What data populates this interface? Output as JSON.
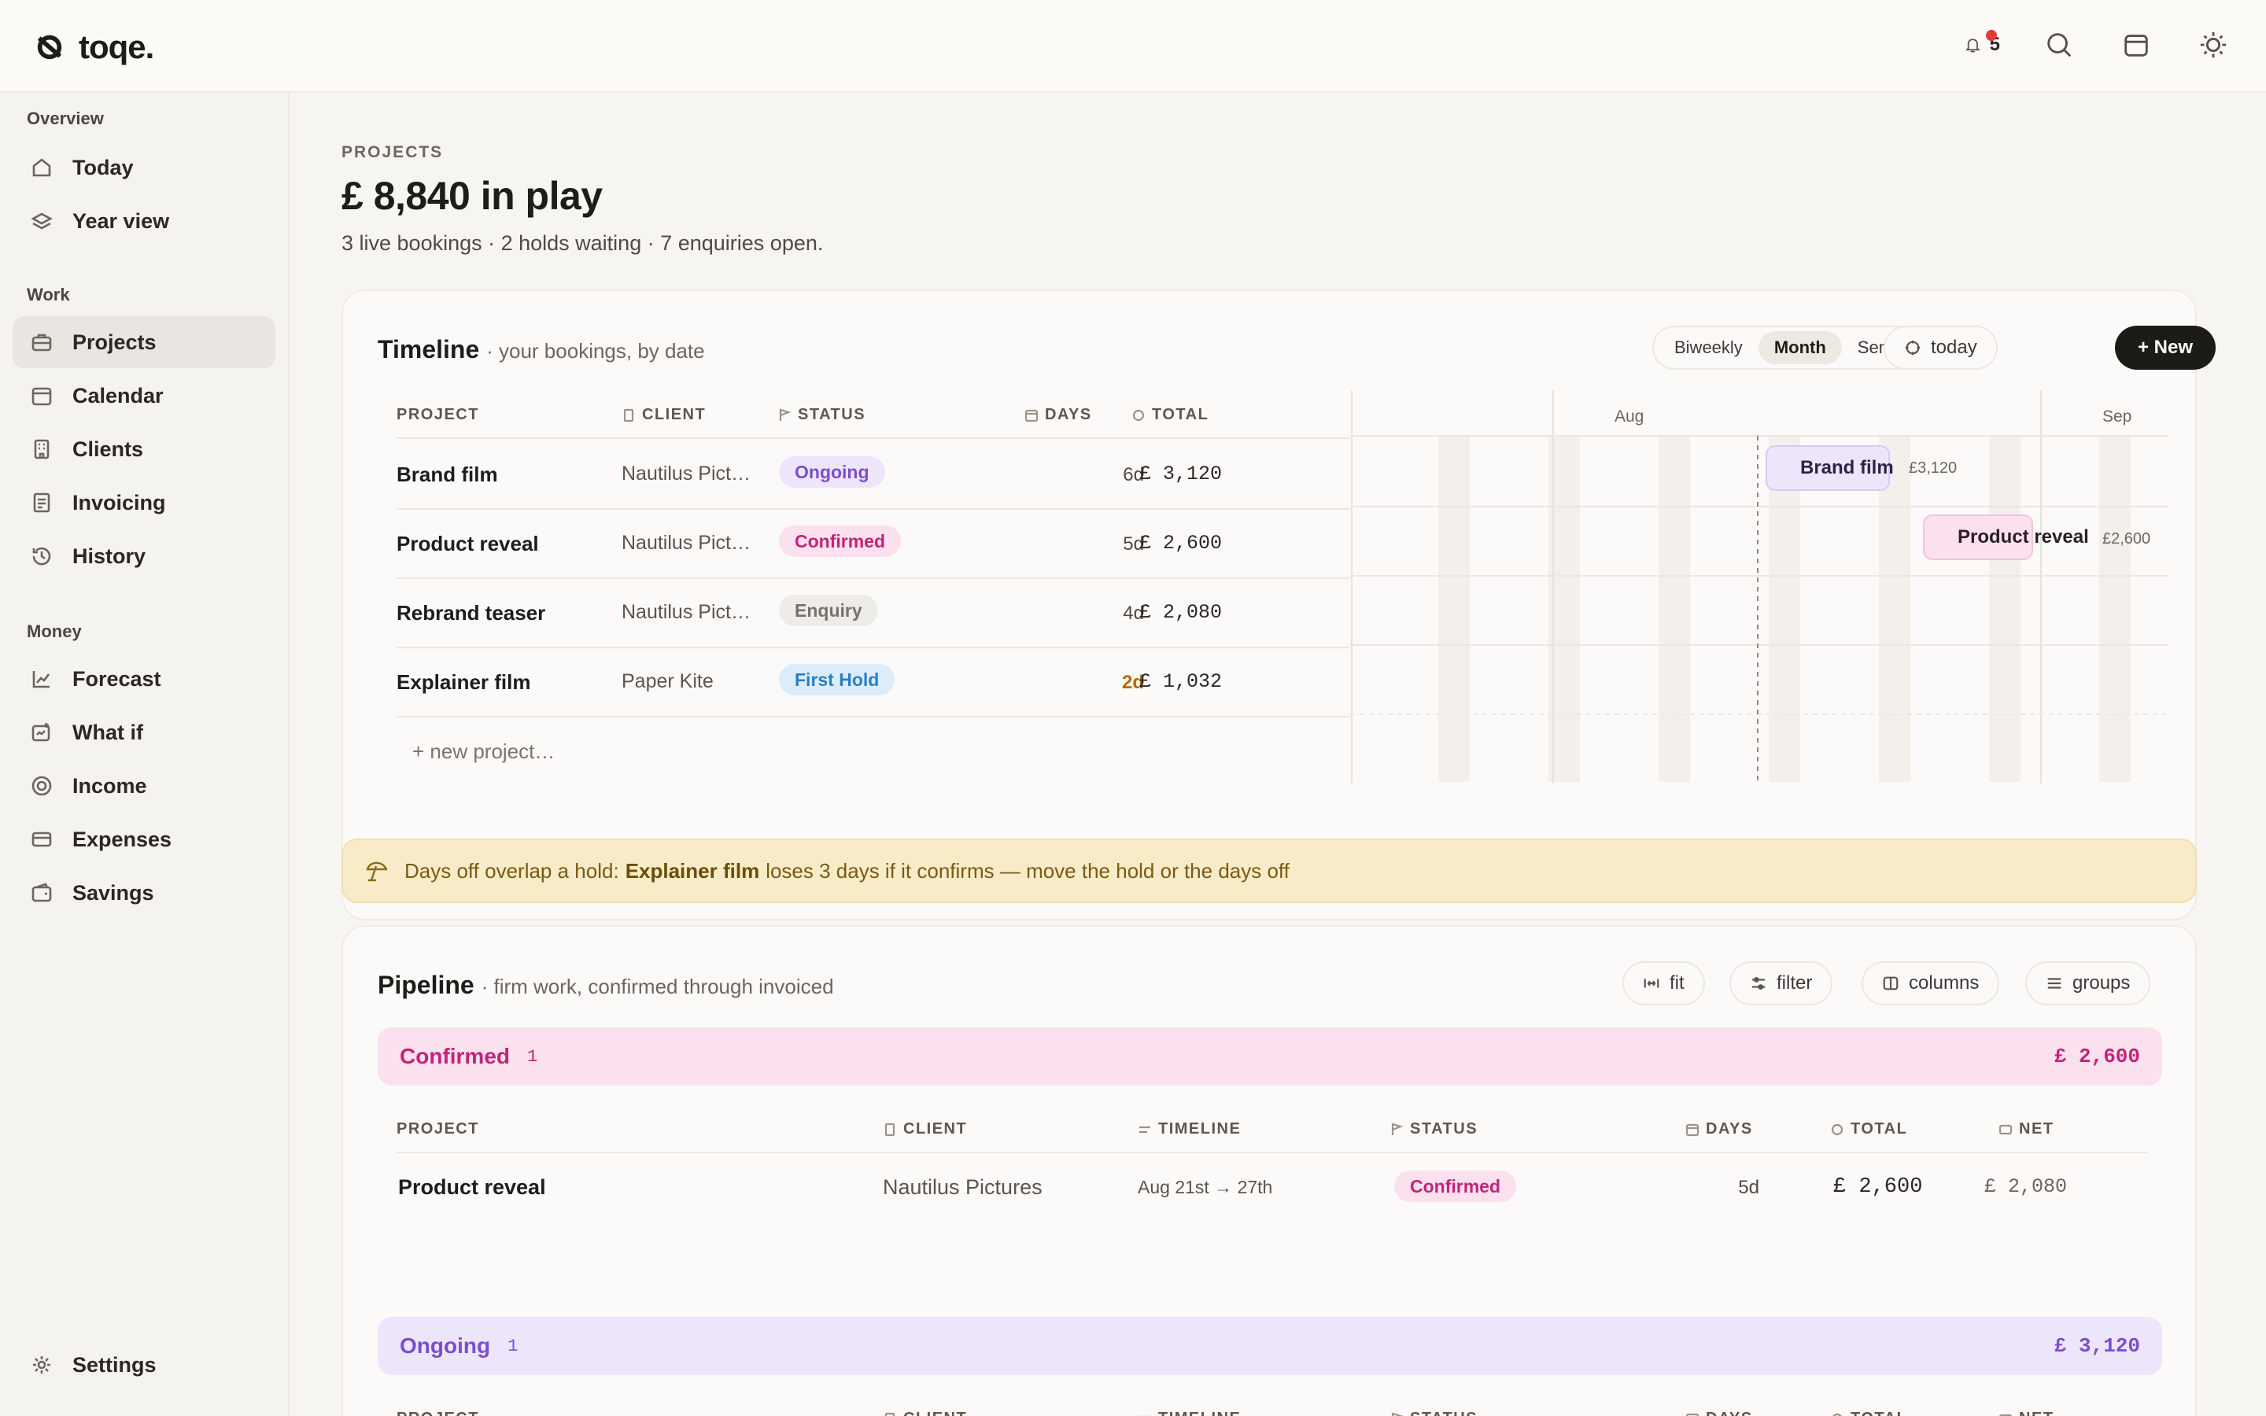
{
  "app": {
    "name": "toqe."
  },
  "topbar": {
    "notification_count": "5",
    "icons": [
      "bell-icon",
      "search-icon",
      "calendar-icon",
      "sun-icon"
    ]
  },
  "sidebar": {
    "sections": [
      {
        "label": "Overview",
        "items": [
          {
            "label": "Today",
            "icon": "home-icon"
          },
          {
            "label": "Year view",
            "icon": "layers-icon"
          }
        ]
      },
      {
        "label": "Work",
        "items": [
          {
            "label": "Projects",
            "icon": "briefcase-icon",
            "active": true
          },
          {
            "label": "Calendar",
            "icon": "calendar-icon"
          },
          {
            "label": "Clients",
            "icon": "building-icon"
          },
          {
            "label": "Invoicing",
            "icon": "invoice-icon"
          },
          {
            "label": "History",
            "icon": "history-icon"
          }
        ]
      },
      {
        "label": "Money",
        "items": [
          {
            "label": "Forecast",
            "icon": "chart-icon"
          },
          {
            "label": "What if",
            "icon": "scenario-icon"
          },
          {
            "label": "Income",
            "icon": "coin-icon"
          },
          {
            "label": "Expenses",
            "icon": "card-icon"
          },
          {
            "label": "Savings",
            "icon": "wallet-icon"
          }
        ]
      }
    ],
    "settings_label": "Settings"
  },
  "header": {
    "eyebrow": "PROJECTS",
    "title": "£ 8,840 in play",
    "subtitle": "3 live bookings · 2 holds waiting · 7 enquiries open."
  },
  "timeline": {
    "title": "Timeline",
    "subtitle": "· your bookings, by date",
    "views": [
      "Biweekly",
      "Month",
      "Semester"
    ],
    "selected_view": "Month",
    "today_label": "today",
    "new_label": "+ New",
    "columns": [
      "PROJECT",
      "CLIENT",
      "STATUS",
      "DAYS",
      "TOTAL"
    ],
    "rows": [
      {
        "project": "Brand film",
        "client": "Nautilus Pict…",
        "status": "Ongoing",
        "days": "6d",
        "total": "£ 3,120"
      },
      {
        "project": "Product reveal",
        "client": "Nautilus Pict…",
        "status": "Confirmed",
        "days": "5d",
        "total": "£ 2,600"
      },
      {
        "project": "Rebrand teaser",
        "client": "Nautilus Pict…",
        "status": "Enquiry",
        "days": "4d",
        "total": "£ 2,080"
      },
      {
        "project": "Explainer film",
        "client": "Paper Kite",
        "status": "First Hold",
        "days": "2d",
        "total": "£ 1,032"
      }
    ],
    "new_project_label": "+ new project…",
    "months": [
      "Aug",
      "Sep"
    ],
    "bars": [
      {
        "label": "Brand film",
        "amount": "£3,120"
      },
      {
        "label": "Product reveal",
        "amount": "£2,600"
      }
    ]
  },
  "alert": {
    "prefix": "Days off overlap a hold:",
    "project": "Explainer film",
    "suffix": "loses 3 days if it confirms — move the hold or the days off"
  },
  "pipeline": {
    "title": "Pipeline",
    "subtitle": "· firm work, confirmed through invoiced",
    "actions": [
      "fit",
      "filter",
      "columns",
      "groups"
    ],
    "columns": [
      "PROJECT",
      "CLIENT",
      "TIMELINE",
      "STATUS",
      "DAYS",
      "TOTAL",
      "NET"
    ],
    "groups": [
      {
        "name": "Confirmed",
        "count": "1",
        "total": "£ 2,600",
        "rows": [
          {
            "project": "Product reveal",
            "client": "Nautilus Pictures",
            "timeline": "Aug 21st → 27th",
            "status": "Confirmed",
            "days": "5d",
            "total": "£ 2,600",
            "net": "£ 2,080"
          }
        ]
      },
      {
        "name": "Ongoing",
        "count": "1",
        "total": "£ 3,120",
        "rows": []
      }
    ]
  },
  "colors": {
    "ongoing_bg": "#ede6fb",
    "ongoing_fg": "#7c4dcc",
    "confirmed_bg": "#fbe0ee",
    "confirmed_fg": "#c2247a",
    "enquiry_bg": "#eeece8",
    "enquiry_fg": "#77716a",
    "hold_bg": "#dcecf9",
    "hold_fg": "#2a7fc4",
    "alert_bg": "#f8ebc8"
  }
}
